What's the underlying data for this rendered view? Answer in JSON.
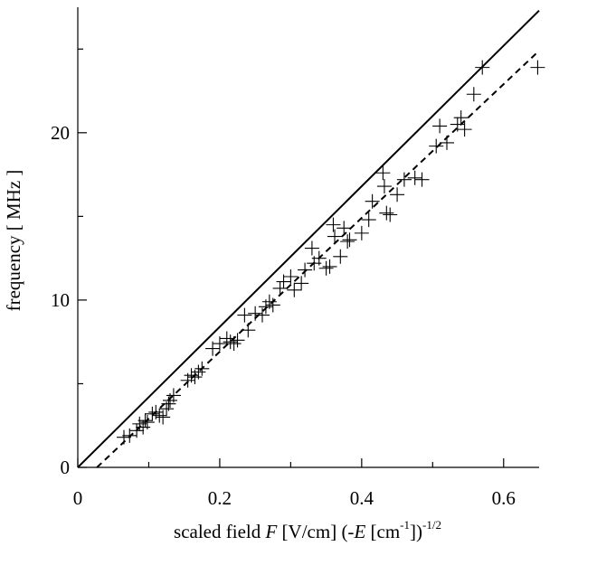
{
  "chart_data": {
    "type": "scatter",
    "title": "",
    "xlabel": {
      "prefix": "scaled field ",
      "var": "F",
      "units": " [V/cm] (-",
      "var2": "E",
      "units2": " [cm",
      "sup1": "-1",
      "close": "])",
      "sup2": "-1/2"
    },
    "ylabel": "frequency [ MHz ]",
    "xlim": [
      0,
      0.65
    ],
    "ylim": [
      0,
      27.5
    ],
    "x_ticks_major": [
      0,
      0.2,
      0.4,
      0.6
    ],
    "x_tick_labels": [
      "0",
      "0.2",
      "0.4",
      "0.6"
    ],
    "x_ticks_minor": [
      0.1,
      0.3,
      0.5
    ],
    "y_ticks_major": [
      0,
      10,
      20
    ],
    "y_tick_labels": [
      "0",
      "10",
      "20"
    ],
    "y_ticks_minor": [
      5,
      15,
      25
    ],
    "grid": false,
    "series": [
      {
        "style": "solid-line",
        "x": [
          0,
          0.65
        ],
        "y": [
          0,
          27.3
        ]
      },
      {
        "style": "dashed-line",
        "x": [
          0.027,
          0.65
        ],
        "y": [
          0,
          24.9
        ]
      },
      {
        "style": "plus-markers",
        "x": [
          0.065,
          0.073,
          0.083,
          0.087,
          0.092,
          0.095,
          0.098,
          0.105,
          0.11,
          0.115,
          0.12,
          0.125,
          0.128,
          0.13,
          0.135,
          0.155,
          0.16,
          0.165,
          0.17,
          0.175,
          0.19,
          0.2,
          0.21,
          0.215,
          0.22,
          0.225,
          0.235,
          0.24,
          0.25,
          0.26,
          0.265,
          0.27,
          0.275,
          0.285,
          0.29,
          0.3,
          0.305,
          0.315,
          0.32,
          0.33,
          0.333,
          0.34,
          0.35,
          0.355,
          0.36,
          0.362,
          0.37,
          0.375,
          0.38,
          0.383,
          0.4,
          0.41,
          0.415,
          0.43,
          0.432,
          0.435,
          0.44,
          0.45,
          0.46,
          0.475,
          0.485,
          0.505,
          0.51,
          0.52,
          0.535,
          0.54,
          0.545,
          0.558,
          0.57,
          0.648
        ],
        "y": [
          1.8,
          1.9,
          2.2,
          2.6,
          2.4,
          2.8,
          2.7,
          3.2,
          3.3,
          3.1,
          3.0,
          3.5,
          3.8,
          4.0,
          4.3,
          5.2,
          5.5,
          5.4,
          5.7,
          5.9,
          7.1,
          7.4,
          7.7,
          7.5,
          7.4,
          7.6,
          9.1,
          8.2,
          9.2,
          9.1,
          9.6,
          9.9,
          9.7,
          10.7,
          11.1,
          11.4,
          10.6,
          11.0,
          11.8,
          13.1,
          12.2,
          12.5,
          11.9,
          12.0,
          14.5,
          13.8,
          12.6,
          14.3,
          13.5,
          13.6,
          14.0,
          14.8,
          15.9,
          17.6,
          16.8,
          15.2,
          15.1,
          16.3,
          17.2,
          17.3,
          17.2,
          19.2,
          20.4,
          19.4,
          20.5,
          20.9,
          20.2,
          22.3,
          23.9,
          23.9
        ]
      }
    ]
  }
}
